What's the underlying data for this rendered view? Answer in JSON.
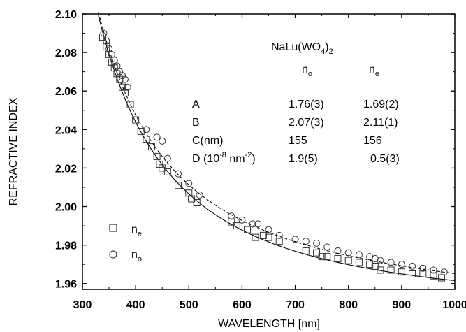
{
  "chart_data": {
    "type": "scatter",
    "title": "",
    "xlabel": "WAVELENGTH [nm]",
    "ylabel": "REFRACTIVE INDEX",
    "xlim": [
      300,
      1000
    ],
    "ylim": [
      1.957,
      2.1
    ],
    "xticks": [
      300,
      400,
      500,
      600,
      700,
      800,
      900,
      1000
    ],
    "yticks": [
      1.96,
      1.98,
      2.0,
      2.02,
      2.04,
      2.06,
      2.08,
      2.1
    ],
    "xtick_labels": [
      "300",
      "400",
      "500",
      "600",
      "700",
      "800",
      "900",
      "1000"
    ],
    "ytick_labels": [
      "1.96",
      "1.98",
      "2.00",
      "2.02",
      "2.04",
      "2.06",
      "2.08",
      "2.10"
    ],
    "legend_position": "bottom-left",
    "annotation": {
      "compound": {
        "base": "NaLu(WO",
        "sub1": "4",
        "close": ")",
        "sub2": "2"
      },
      "header": {
        "no": {
          "main": "n",
          "sub": "o"
        },
        "ne": {
          "main": "n",
          "sub": "e"
        }
      },
      "rows": [
        {
          "label": "A",
          "no": "1.76(3)",
          "ne": "1.69(2)"
        },
        {
          "label": "B",
          "no": "2.07(3)",
          "ne": "2.11(1)"
        },
        {
          "label": "C(nm)",
          "no": "155",
          "ne": "156"
        }
      ],
      "row_d": {
        "pre": "D (10",
        "sup1": "-8",
        "mid": " nm",
        "sup2": "-2",
        "post": ")",
        "no": "1.9(5)",
        "ne": "0.5(3)"
      }
    },
    "series": [
      {
        "name_main": "n",
        "name_sub": "e",
        "marker": "square",
        "x": [
          338,
          345,
          350,
          355,
          360,
          365,
          370,
          375,
          380,
          390,
          400,
          410,
          420,
          430,
          440,
          445,
          450,
          460,
          480,
          500,
          505,
          515,
          580,
          590,
          610,
          625,
          640,
          650,
          670,
          720,
          740,
          750,
          760,
          780,
          800,
          820,
          840,
          850,
          860,
          880,
          900,
          920,
          940,
          960,
          975
        ],
        "y": [
          2.088,
          2.083,
          2.079,
          2.075,
          2.072,
          2.069,
          2.066,
          2.062,
          2.059,
          2.053,
          2.045,
          2.039,
          2.035,
          2.031,
          2.026,
          2.022,
          2.02,
          2.018,
          2.011,
          2.007,
          2.004,
          2.002,
          1.992,
          1.99,
          1.988,
          1.984,
          1.985,
          1.984,
          1.982,
          1.977,
          1.976,
          1.974,
          1.974,
          1.973,
          1.972,
          1.971,
          1.97,
          1.969,
          1.967,
          1.967,
          1.966,
          1.965,
          1.965,
          1.964,
          1.963
        ]
      },
      {
        "name_main": "n",
        "name_sub": "o",
        "marker": "circle",
        "x": [
          340,
          345,
          350,
          355,
          360,
          365,
          370,
          375,
          380,
          385,
          420,
          440,
          450,
          460,
          480,
          500,
          520,
          580,
          600,
          620,
          630,
          650,
          670,
          700,
          720,
          740,
          760,
          780,
          800,
          820,
          840,
          850,
          860,
          880,
          900,
          920,
          940,
          960,
          980
        ],
        "y": [
          2.09,
          2.086,
          2.082,
          2.079,
          2.076,
          2.073,
          2.07,
          2.068,
          2.066,
          2.062,
          2.04,
          2.036,
          2.034,
          2.025,
          2.017,
          2.012,
          2.006,
          1.995,
          1.993,
          1.991,
          1.991,
          1.988,
          1.985,
          1.983,
          1.982,
          1.981,
          1.979,
          1.977,
          1.976,
          1.975,
          1.974,
          1.973,
          1.972,
          1.971,
          1.97,
          1.969,
          1.968,
          1.967,
          1.966
        ]
      }
    ],
    "fits": [
      {
        "of": "ne",
        "style": "solid",
        "A": 1.69,
        "B": 2.11,
        "C": 156,
        "D": 5e-09
      },
      {
        "of": "no",
        "style": "dashed",
        "A": 1.76,
        "B": 2.07,
        "C": 155,
        "D": 1.9e-08
      }
    ]
  }
}
